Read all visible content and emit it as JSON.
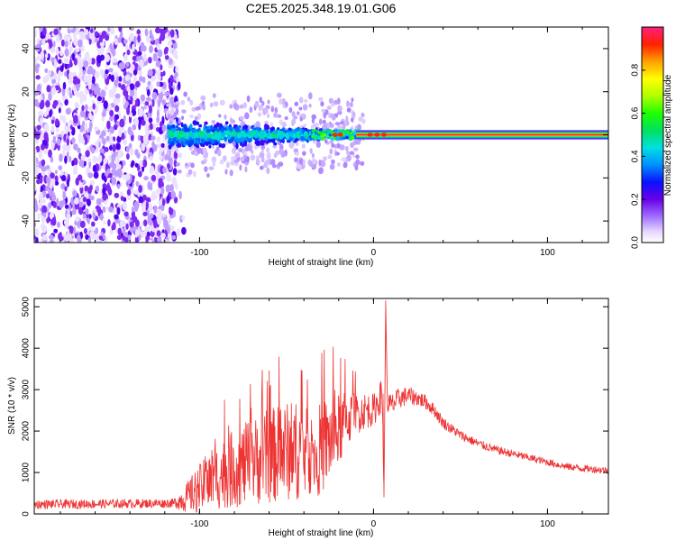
{
  "title": "C2E5.2025.348.19.01.G06",
  "colors": {
    "snr_line": "#ee3333",
    "band": "#ff1a1a",
    "frame": "#000000"
  },
  "chart_data": [
    {
      "type": "heatmap",
      "title": "C2E5.2025.348.19.01.G06",
      "xlabel": "Height of straight line (km)",
      "ylabel": "Frequency (Hz)",
      "xlim": [
        -195,
        135
      ],
      "ylim": [
        -50,
        50
      ],
      "xticks": [
        -100,
        0,
        100
      ],
      "xtick_labels": [
        "-100",
        "0",
        "100"
      ],
      "yticks": [
        -40,
        -20,
        0,
        20,
        40
      ],
      "ytick_labels": [
        "-40",
        "-20",
        "0",
        "20",
        "40"
      ],
      "colorbar": {
        "label": "Normalized spectral amplitude",
        "range": [
          0,
          1
        ],
        "ticks": [
          0.0,
          0.2,
          0.4,
          0.6,
          0.8
        ],
        "tick_labels": [
          "0.0",
          "0.2",
          "0.4",
          "0.6",
          "0.8"
        ]
      },
      "regions": [
        {
          "name": "noise",
          "x_range": [
            -195,
            -113
          ],
          "freq_range": [
            -50,
            50
          ],
          "amplitude": 0.1
        },
        {
          "name": "scattered signal",
          "x_range": [
            -118,
            -30
          ],
          "freq_range": [
            -10,
            10
          ],
          "amplitude": 0.3
        },
        {
          "name": "tone",
          "x_range": [
            -10,
            135
          ],
          "freq": 0,
          "amplitude": 0.95
        }
      ]
    },
    {
      "type": "line",
      "xlabel": "Height of straight line (km)",
      "ylabel": "SNR (10 * v/v)",
      "xlim": [
        -195,
        135
      ],
      "ylim": [
        0,
        5200
      ],
      "xticks": [
        -100,
        0,
        100
      ],
      "xtick_labels": [
        "-100",
        "0",
        "100"
      ],
      "yticks": [
        0,
        1000,
        2000,
        3000,
        4000,
        5000
      ],
      "ytick_labels": [
        "0",
        "1000",
        "2000",
        "3000",
        "4000",
        "5000"
      ],
      "series": [
        {
          "name": "SNR",
          "x": [
            -195,
            -170,
            -140,
            -115,
            -108,
            -100,
            -90,
            -80,
            -70,
            -60,
            -50,
            -40,
            -35,
            -30,
            -20,
            -15,
            -10,
            -5,
            0,
            5,
            6,
            7,
            8,
            10,
            15,
            20,
            25,
            30,
            35,
            40,
            50,
            60,
            70,
            80,
            90,
            100,
            110,
            120,
            135
          ],
          "values": [
            230,
            240,
            250,
            260,
            380,
            600,
            900,
            1100,
            1250,
            1400,
            1500,
            1550,
            1300,
            1600,
            2000,
            2300,
            2400,
            2500,
            2500,
            2900,
            400,
            4800,
            2700,
            2600,
            2800,
            2850,
            2800,
            2700,
            2500,
            2200,
            1900,
            1700,
            1550,
            1450,
            1350,
            1250,
            1150,
            1100,
            1050
          ],
          "spread": [
            110,
            110,
            110,
            110,
            350,
            600,
            800,
            950,
            1050,
            1150,
            1200,
            1200,
            800,
            1200,
            900,
            700,
            500,
            450,
            400,
            400,
            0,
            0,
            300,
            300,
            260,
            220,
            200,
            180,
            160,
            140,
            120,
            110,
            100,
            100,
            90,
            90,
            90,
            90,
            90
          ]
        }
      ]
    }
  ]
}
